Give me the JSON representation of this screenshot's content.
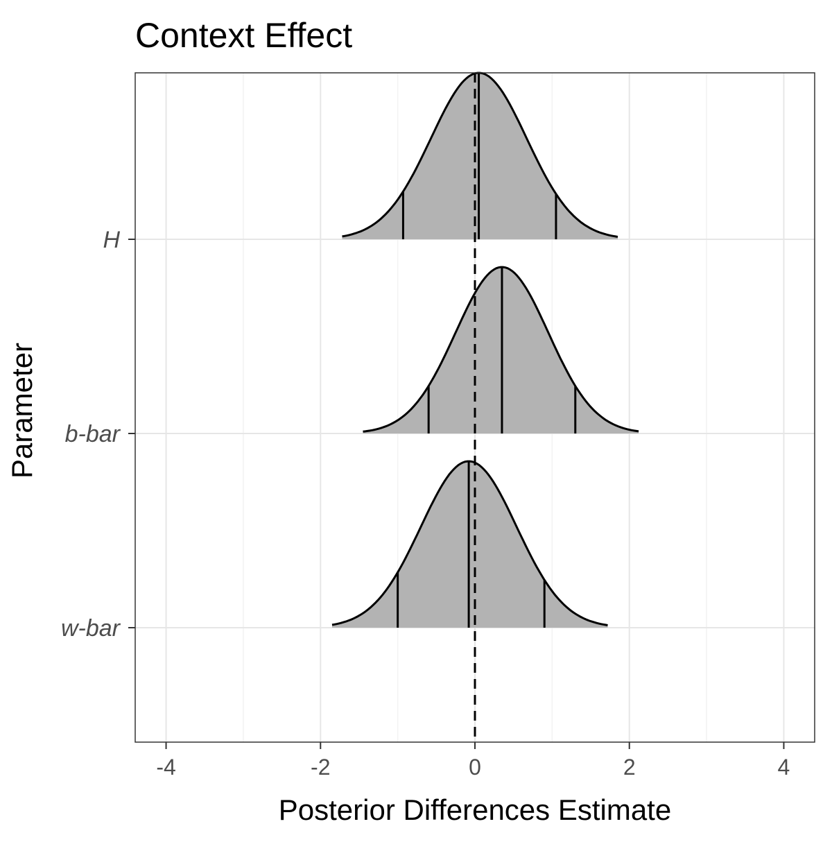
{
  "chart_data": {
    "type": "ridgeline",
    "title": "Context Effect",
    "xlabel": "Posterior Differences Estimate",
    "ylabel": "Parameter",
    "xlim": [
      -4.4,
      4.4
    ],
    "xticks": [
      -4,
      -2,
      0,
      2,
      4
    ],
    "xtick_labels": [
      "-4",
      "-2",
      "0",
      "2",
      "4"
    ],
    "grid": true,
    "reference_line": {
      "x": 0,
      "style": "dashed"
    },
    "fill_color": "#b3b3b3",
    "series": [
      {
        "name": "H",
        "x_min": -1.72,
        "x_max": 1.85,
        "mode": 0.05,
        "sd": 0.62,
        "quantiles": [
          -0.93,
          0.05,
          1.05
        ]
      },
      {
        "name": "b-bar",
        "x_min": -1.45,
        "x_max": 2.12,
        "mode": 0.35,
        "sd": 0.6,
        "quantiles": [
          -0.6,
          0.35,
          1.3
        ]
      },
      {
        "name": "w-bar",
        "x_min": -1.85,
        "x_max": 1.72,
        "mode": -0.08,
        "sd": 0.62,
        "quantiles": [
          -1.0,
          -0.08,
          0.9
        ]
      }
    ]
  }
}
